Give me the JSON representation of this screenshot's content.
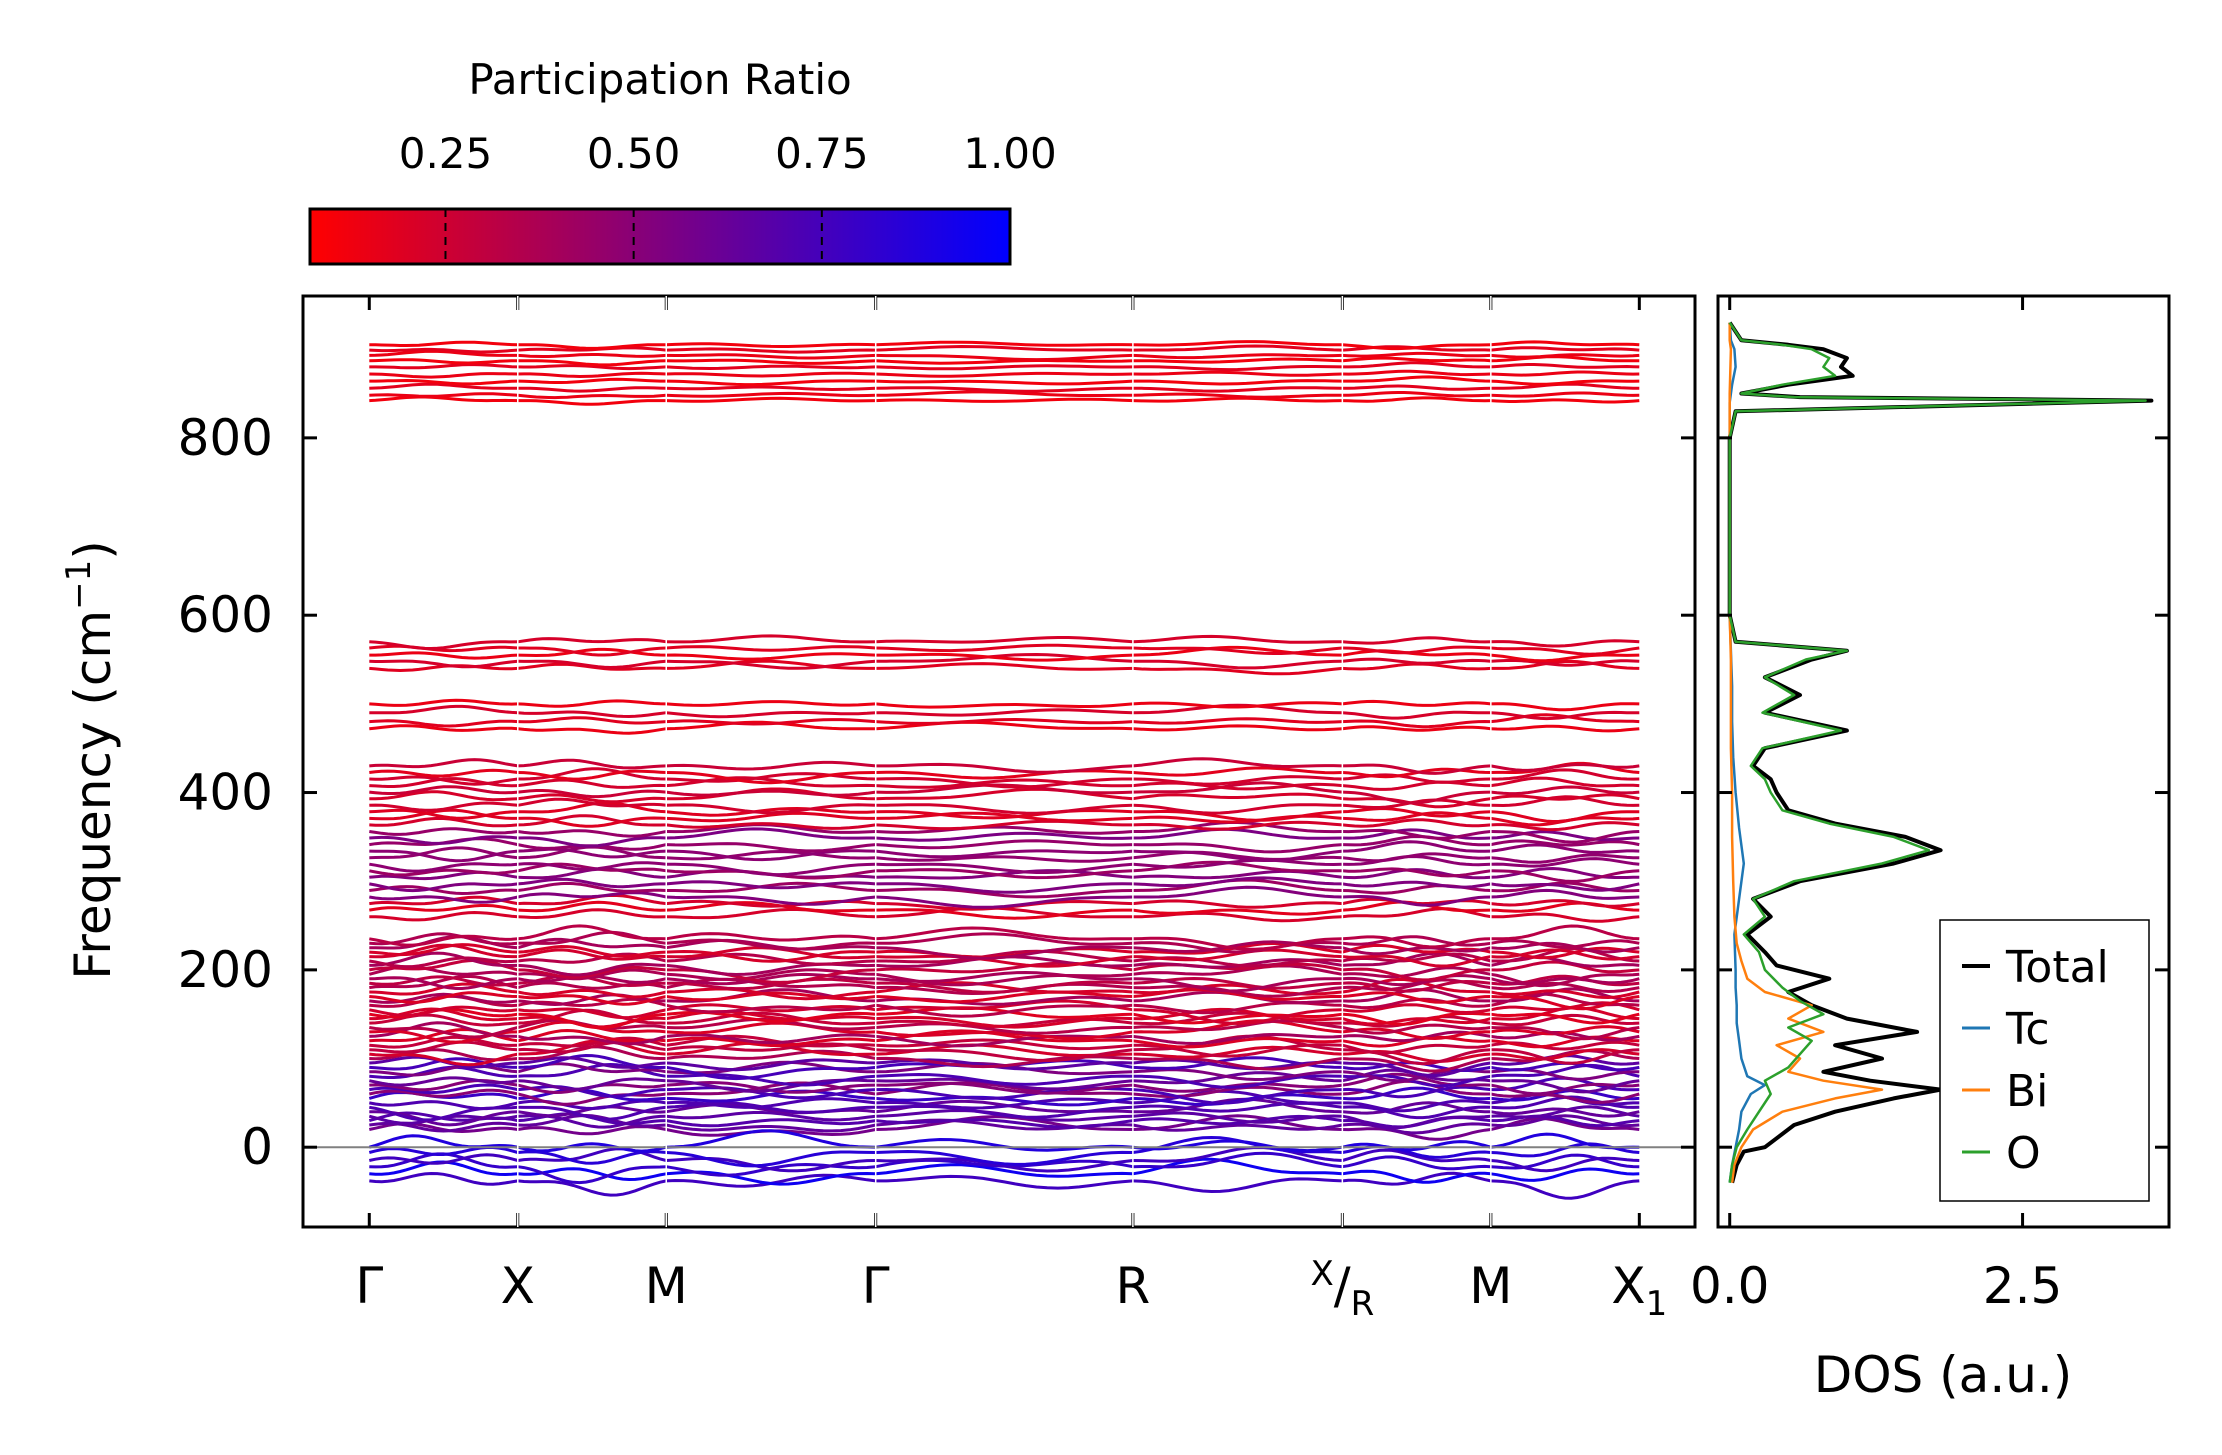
{
  "chart_data": [
    {
      "type": "line",
      "panel": "phonon-band-structure",
      "ylabel_main": "Frequency (cm",
      "ylabel_sup": "−1",
      "ylabel_close": ")",
      "ylim": [
        -90,
        960
      ],
      "yticks": [
        0,
        200,
        400,
        600,
        800
      ],
      "ytick_labels": [
        "0",
        "200",
        "400",
        "600",
        "800"
      ],
      "kpath": [
        {
          "label": "Γ",
          "pos": 0.0
        },
        {
          "label": "X",
          "pos": 0.112
        },
        {
          "label": "M",
          "pos": 0.224
        },
        {
          "label": "Γ",
          "pos": 0.382
        },
        {
          "label": "R",
          "pos": 0.576
        },
        {
          "label": "X/R",
          "pos": 0.734,
          "upper": "X",
          "lower": "R"
        },
        {
          "label": "M",
          "pos": 0.846
        },
        {
          "label": "X₁",
          "pos": 0.958,
          "base": "X",
          "sub": "1"
        }
      ],
      "xlim": [
        -0.05,
        1.0
      ],
      "reference_line": 0,
      "high_freq_bands": [
        842,
        848,
        856,
        864,
        872,
        880,
        887,
        893,
        899,
        905
      ],
      "upper_mid_bands": [
        472,
        480,
        490,
        500,
        540,
        548,
        555,
        563,
        570
      ],
      "mid_bands_min": 260,
      "mid_bands_max": 430,
      "low_bands_min": 20,
      "low_bands_max": 235,
      "unstable_modes": [
        -38,
        -30,
        -22,
        -15,
        -6,
        0
      ]
    },
    {
      "type": "colorbar",
      "title": "Participation Ratio",
      "range": [
        0.07,
        1.0
      ],
      "ticks": [
        0.25,
        0.5,
        0.75,
        1.0
      ],
      "tick_labels": [
        "0.25",
        "0.50",
        "0.75",
        "1.00"
      ],
      "color_low": "#ff0000",
      "color_high": "#0000ff"
    },
    {
      "type": "line",
      "panel": "density-of-states",
      "xlabel": "DOS (a.u.)",
      "xlim": [
        -0.1,
        3.75
      ],
      "xticks": [
        0.0,
        2.5
      ],
      "xtick_labels": [
        "0.0",
        "2.5"
      ],
      "legend_position": "lower-right",
      "series": [
        {
          "name": "Total",
          "color": "#000000",
          "f": [
            -40,
            -20,
            -5,
            0,
            10,
            25,
            40,
            55,
            65,
            75,
            85,
            100,
            115,
            130,
            145,
            160,
            175,
            190,
            205,
            220,
            240,
            260,
            280,
            300,
            320,
            335,
            350,
            365,
            380,
            400,
            415,
            430,
            450,
            470,
            490,
            510,
            530,
            550,
            560,
            570,
            600,
            650,
            700,
            750,
            800,
            830,
            842,
            846,
            850,
            860,
            870,
            880,
            890,
            900,
            905,
            910,
            930
          ],
          "dos": [
            0.02,
            0.06,
            0.12,
            0.3,
            0.4,
            0.55,
            0.9,
            1.4,
            1.8,
            1.2,
            0.8,
            1.3,
            0.9,
            1.6,
            1.0,
            0.7,
            0.5,
            0.85,
            0.4,
            0.3,
            0.15,
            0.35,
            0.2,
            0.6,
            1.4,
            1.8,
            1.5,
            0.9,
            0.5,
            0.4,
            0.35,
            0.2,
            0.3,
            1.0,
            0.3,
            0.6,
            0.3,
            0.7,
            1.0,
            0.05,
            0.0,
            0.0,
            0.0,
            0.0,
            0.0,
            0.05,
            3.6,
            0.6,
            0.1,
            0.5,
            1.05,
            0.95,
            1.0,
            0.8,
            0.5,
            0.1,
            0.0
          ]
        },
        {
          "name": "Tc",
          "color": "#1f77b4",
          "f": [
            -40,
            -20,
            0,
            20,
            40,
            60,
            70,
            80,
            100,
            120,
            140,
            160,
            180,
            200,
            240,
            280,
            320,
            360,
            400,
            440,
            480,
            520,
            560,
            600,
            840,
            860,
            880,
            900,
            910,
            930
          ],
          "dos": [
            0.0,
            0.02,
            0.05,
            0.08,
            0.1,
            0.18,
            0.3,
            0.15,
            0.1,
            0.08,
            0.06,
            0.06,
            0.05,
            0.05,
            0.04,
            0.08,
            0.12,
            0.08,
            0.05,
            0.03,
            0.02,
            0.02,
            0.01,
            0.0,
            0.0,
            0.02,
            0.05,
            0.04,
            0.01,
            0.0
          ]
        },
        {
          "name": "Bi",
          "color": "#ff7f0e",
          "f": [
            -40,
            -20,
            0,
            20,
            40,
            55,
            65,
            75,
            85,
            100,
            115,
            130,
            145,
            160,
            175,
            190,
            210,
            230,
            260,
            300,
            350,
            400,
            450,
            500,
            550,
            600,
            850,
            900,
            910,
            930
          ],
          "dos": [
            0.02,
            0.04,
            0.1,
            0.2,
            0.45,
            0.9,
            1.3,
            0.8,
            0.5,
            0.6,
            0.4,
            0.8,
            0.5,
            0.7,
            0.3,
            0.15,
            0.1,
            0.06,
            0.04,
            0.03,
            0.02,
            0.02,
            0.01,
            0.01,
            0.01,
            0.0,
            0.0,
            0.01,
            0.0,
            0.0
          ]
        },
        {
          "name": "O",
          "color": "#2ca02c",
          "f": [
            -40,
            -20,
            0,
            20,
            40,
            60,
            75,
            90,
            105,
            120,
            135,
            150,
            165,
            180,
            200,
            220,
            240,
            260,
            280,
            300,
            320,
            335,
            350,
            365,
            380,
            400,
            415,
            430,
            450,
            470,
            490,
            510,
            530,
            550,
            560,
            570,
            600,
            650,
            700,
            750,
            800,
            830,
            842,
            846,
            850,
            860,
            870,
            880,
            890,
            900,
            905,
            910,
            930
          ],
          "dos": [
            0.0,
            0.02,
            0.06,
            0.15,
            0.25,
            0.35,
            0.3,
            0.5,
            0.6,
            0.7,
            0.5,
            0.8,
            0.6,
            0.45,
            0.3,
            0.25,
            0.12,
            0.3,
            0.2,
            0.55,
            1.3,
            1.7,
            1.4,
            0.85,
            0.45,
            0.35,
            0.3,
            0.18,
            0.28,
            0.95,
            0.28,
            0.55,
            0.3,
            0.65,
            1.0,
            0.05,
            0.0,
            0.0,
            0.0,
            0.0,
            0.0,
            0.05,
            3.55,
            0.55,
            0.1,
            0.45,
            0.9,
            0.8,
            0.85,
            0.7,
            0.45,
            0.1,
            0.0
          ]
        }
      ]
    }
  ]
}
